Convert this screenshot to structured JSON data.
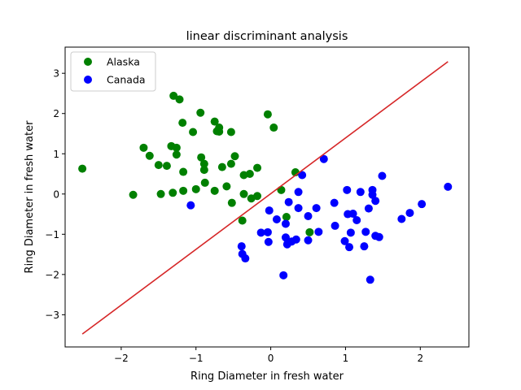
{
  "chart_data": {
    "type": "scatter",
    "title": "linear discriminant analysis",
    "xlabel": "Ring Diameter in fresh water",
    "ylabel": "Ring Diameter in fresh water",
    "xlim": [
      -2.75,
      2.65
    ],
    "ylim": [
      -3.8,
      3.65
    ],
    "xticks": [
      -2,
      -1,
      0,
      1,
      2
    ],
    "yticks": [
      -3,
      -2,
      -1,
      0,
      1,
      2,
      3
    ],
    "grid": false,
    "legend_position": "top-left",
    "colors": {
      "Alaska": "#008000",
      "Canada": "#0000ff",
      "line": "#d62728"
    },
    "series": [
      {
        "name": "Alaska",
        "points": [
          [
            -2.52,
            0.63
          ],
          [
            -1.84,
            -0.02
          ],
          [
            -1.7,
            1.15
          ],
          [
            -1.62,
            0.95
          ],
          [
            -1.5,
            0.72
          ],
          [
            -1.47,
            0.0
          ],
          [
            -1.39,
            0.7
          ],
          [
            -1.33,
            1.19
          ],
          [
            -1.31,
            0.03
          ],
          [
            -1.3,
            2.44
          ],
          [
            -1.26,
            1.15
          ],
          [
            -1.26,
            0.98
          ],
          [
            -1.22,
            2.35
          ],
          [
            -1.18,
            1.77
          ],
          [
            -1.17,
            0.55
          ],
          [
            -1.17,
            0.08
          ],
          [
            -1.04,
            1.54
          ],
          [
            -1.0,
            0.12
          ],
          [
            -0.94,
            2.02
          ],
          [
            -0.93,
            0.91
          ],
          [
            -0.89,
            0.75
          ],
          [
            -0.89,
            0.6
          ],
          [
            -0.88,
            0.28
          ],
          [
            -0.75,
            1.8
          ],
          [
            -0.75,
            0.08
          ],
          [
            -0.72,
            1.56
          ],
          [
            -0.69,
            1.65
          ],
          [
            -0.69,
            1.55
          ],
          [
            -0.65,
            0.67
          ],
          [
            -0.59,
            0.19
          ],
          [
            -0.53,
            1.54
          ],
          [
            -0.53,
            0.75
          ],
          [
            -0.52,
            -0.22
          ],
          [
            -0.48,
            0.94
          ],
          [
            -0.38,
            -0.66
          ],
          [
            -0.36,
            0.47
          ],
          [
            -0.36,
            0.0
          ],
          [
            -0.28,
            0.5
          ],
          [
            -0.26,
            -0.11
          ],
          [
            -0.18,
            0.65
          ],
          [
            -0.18,
            -0.05
          ],
          [
            -0.04,
            1.98
          ],
          [
            0.04,
            1.65
          ],
          [
            0.14,
            0.1
          ],
          [
            0.21,
            -0.57
          ],
          [
            0.33,
            0.54
          ],
          [
            0.52,
            -0.95
          ]
        ]
      },
      {
        "name": "Canada",
        "points": [
          [
            -1.07,
            -0.28
          ],
          [
            -0.39,
            -1.3
          ],
          [
            -0.38,
            -1.49
          ],
          [
            -0.34,
            -1.6
          ],
          [
            -0.13,
            -0.96
          ],
          [
            -0.04,
            -0.95
          ],
          [
            -0.03,
            -1.19
          ],
          [
            -0.02,
            -0.41
          ],
          [
            0.08,
            -0.63
          ],
          [
            0.17,
            -2.02
          ],
          [
            0.2,
            -0.74
          ],
          [
            0.2,
            -1.08
          ],
          [
            0.22,
            -1.25
          ],
          [
            0.24,
            -0.2
          ],
          [
            0.28,
            -1.18
          ],
          [
            0.34,
            -1.13
          ],
          [
            0.37,
            0.05
          ],
          [
            0.37,
            -0.35
          ],
          [
            0.42,
            0.47
          ],
          [
            0.5,
            -0.55
          ],
          [
            0.5,
            -1.15
          ],
          [
            0.61,
            -0.35
          ],
          [
            0.64,
            -0.94
          ],
          [
            0.71,
            0.87
          ],
          [
            0.85,
            -0.22
          ],
          [
            0.86,
            -0.79
          ],
          [
            0.99,
            -1.17
          ],
          [
            1.02,
            0.1
          ],
          [
            1.03,
            -0.5
          ],
          [
            1.05,
            -1.32
          ],
          [
            1.07,
            -0.96
          ],
          [
            1.1,
            -0.49
          ],
          [
            1.15,
            -0.65
          ],
          [
            1.2,
            0.05
          ],
          [
            1.25,
            -1.3
          ],
          [
            1.27,
            -0.94
          ],
          [
            1.31,
            -0.36
          ],
          [
            1.33,
            -2.13
          ],
          [
            1.36,
            0.1
          ],
          [
            1.36,
            -0.02
          ],
          [
            1.4,
            -0.17
          ],
          [
            1.4,
            -1.04
          ],
          [
            1.45,
            -1.07
          ],
          [
            1.49,
            0.45
          ],
          [
            1.75,
            -0.62
          ],
          [
            1.86,
            -0.47
          ],
          [
            2.02,
            -0.25
          ],
          [
            2.37,
            0.18
          ]
        ]
      }
    ],
    "line": {
      "x": [
        -2.52,
        2.37
      ],
      "y": [
        -3.48,
        3.29
      ]
    }
  }
}
